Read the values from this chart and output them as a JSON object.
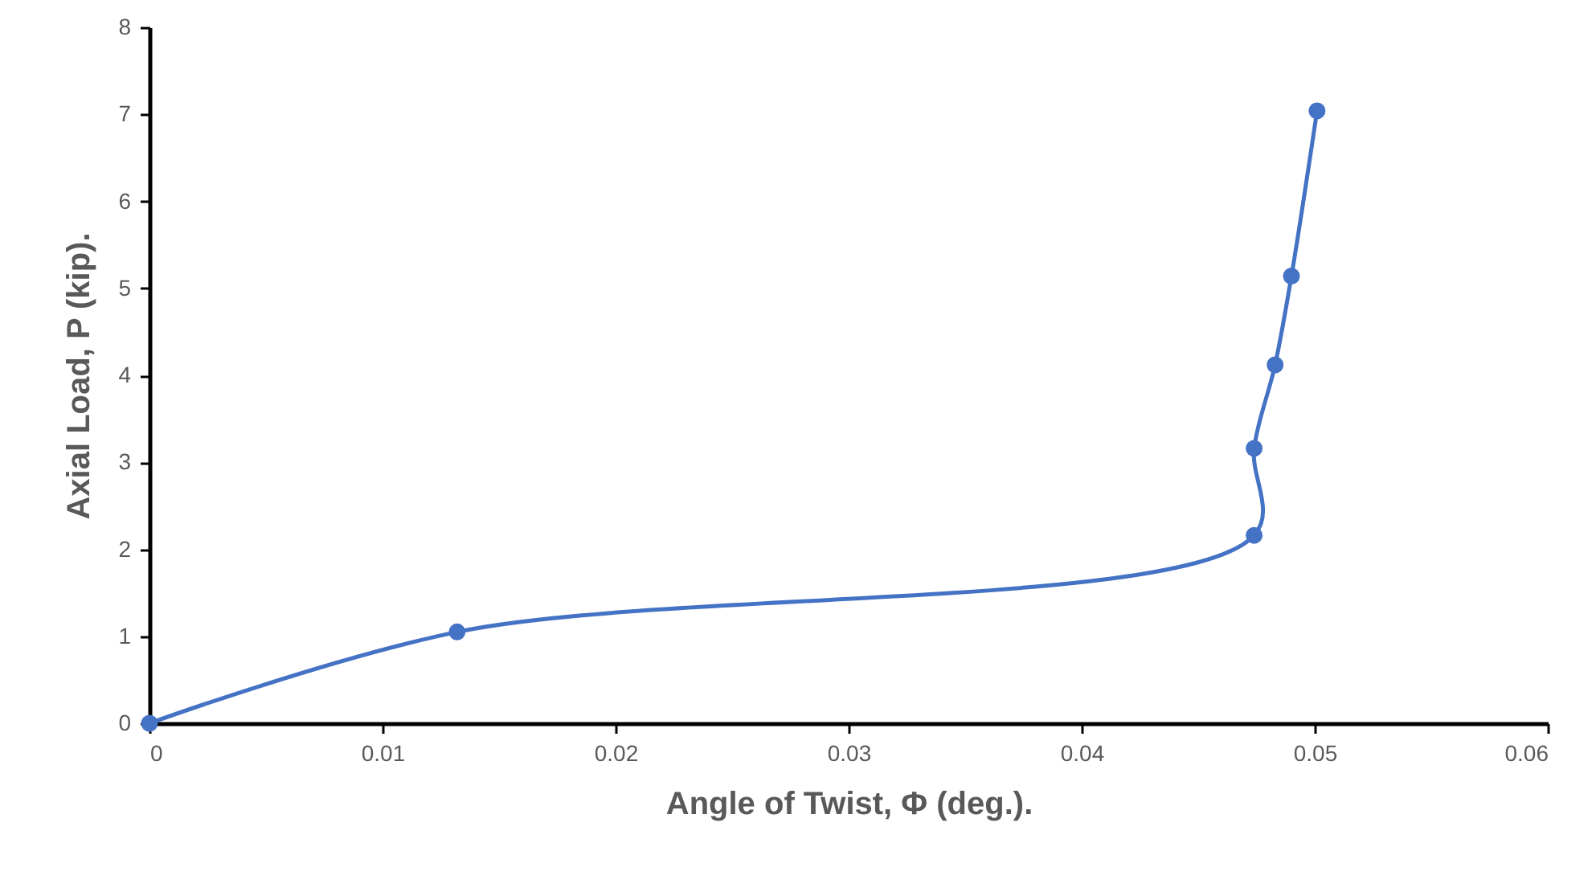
{
  "chart_data": {
    "type": "line",
    "xlabel": "Angle of Twist, Φ (deg.).",
    "ylabel": "Axial Load, P (kip).",
    "x": [
      0,
      0.0132,
      0.0474,
      0.0474,
      0.0483,
      0.049,
      0.0501
    ],
    "series": [
      {
        "color": "#4472c4",
        "values": [
          0,
          1.05,
          2.16,
          3.16,
          4.12,
          5.14,
          7.04
        ]
      }
    ],
    "xlim": [
      0,
      0.06
    ],
    "xticks": [
      0,
      0.01,
      0.02,
      0.03,
      0.04,
      0.05,
      0.06
    ],
    "ylim": [
      0,
      8
    ],
    "yticks": [
      0,
      1,
      2,
      3,
      4,
      5,
      6,
      7,
      8
    ],
    "grid": false,
    "marker": "circle",
    "line_style": "solid"
  }
}
